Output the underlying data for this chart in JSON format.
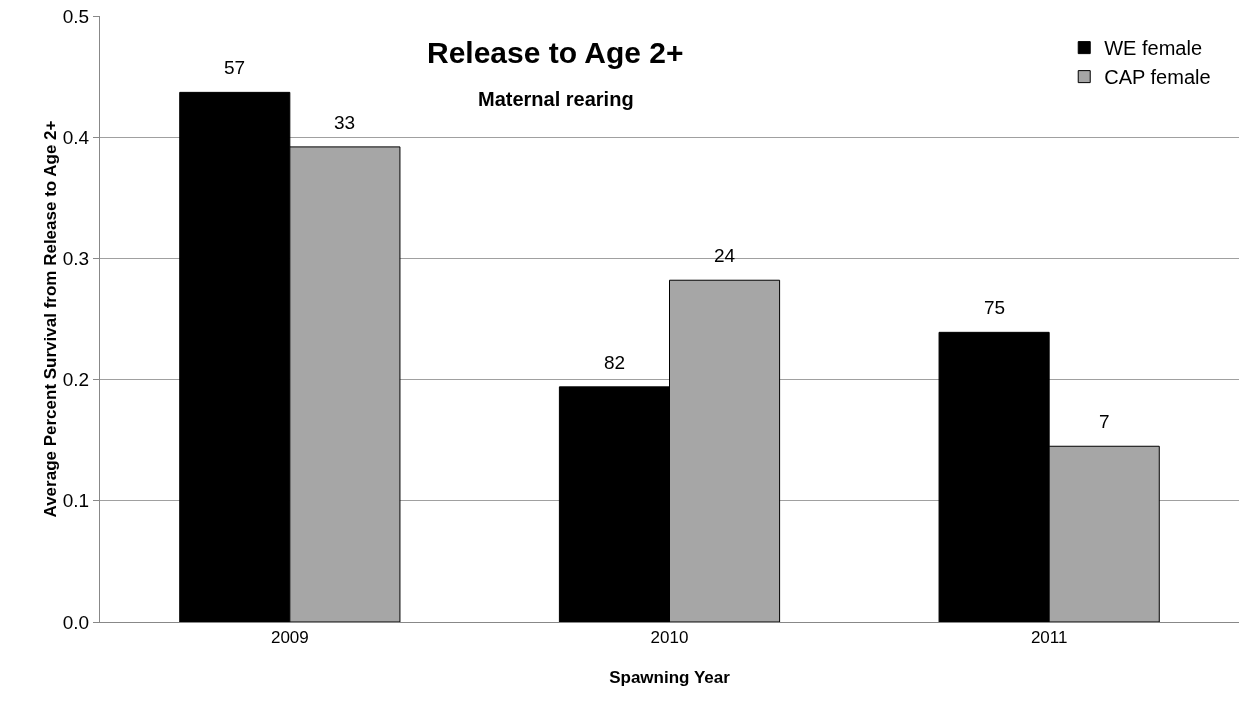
{
  "chart_data": {
    "type": "bar",
    "title": "Release to Age 2+",
    "subtitle": "Maternal rearing",
    "xlabel": "Spawning Year",
    "ylabel": "Average Percent Survival from Release to Age 2+",
    "categories": [
      "2009",
      "2010",
      "2011"
    ],
    "series": [
      {
        "name": "WE female",
        "color": "#000000",
        "values": [
          0.437,
          0.194,
          0.239
        ]
      },
      {
        "name": "CAP female",
        "color": "#a6a6a6",
        "values": [
          0.392,
          0.282,
          0.145
        ]
      }
    ],
    "annotations": [
      {
        "text": "57",
        "x": "2009",
        "y": 0.437
      },
      {
        "text": "33",
        "x": "2009",
        "y": 0.392
      },
      {
        "text": "82",
        "x": "2010",
        "y": 0.194
      },
      {
        "text": "24",
        "x": "2010",
        "y": 0.282
      },
      {
        "text": "75",
        "x": "2011",
        "y": 0.239
      },
      {
        "text": "7",
        "x": "2011",
        "y": 0.145
      }
    ],
    "ylim": [
      0,
      0.5
    ],
    "yticks": [
      {
        "value": 0,
        "label": "0.0"
      },
      {
        "value": 0.1,
        "label": "0.1"
      },
      {
        "value": 0.2,
        "label": "0.2"
      },
      {
        "value": 0.3,
        "label": "0.3"
      },
      {
        "value": 0.4,
        "label": "0.4"
      },
      {
        "value": 0.5,
        "label": "0.5"
      }
    ],
    "grid": "y",
    "legend": "top right"
  }
}
